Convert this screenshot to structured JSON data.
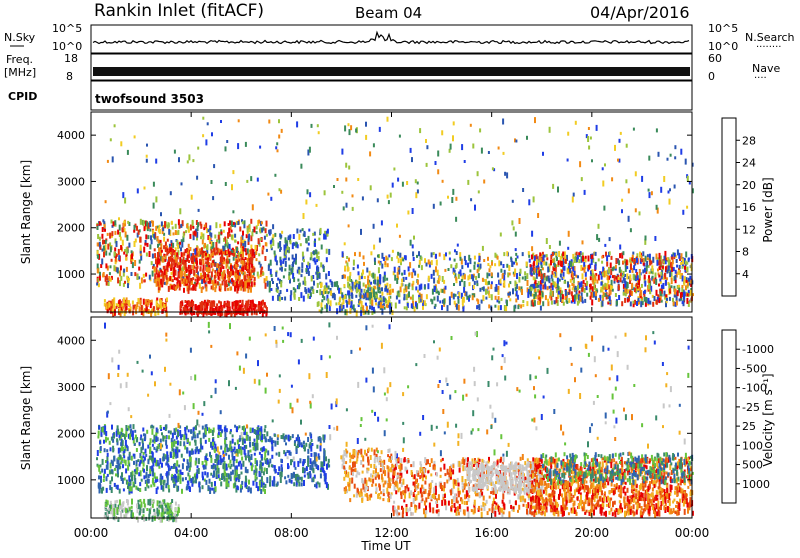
{
  "header": {
    "station": "Rankin Inlet (fitACF)",
    "beam": "Beam 04",
    "date": "04/Apr/2016"
  },
  "strip_panels": {
    "noise": {
      "left_label": "N.Sky",
      "right_label": "N.Search",
      "left_ticks": [
        "10^5",
        "10^0"
      ],
      "right_ticks": [
        "10^5",
        "10^0"
      ]
    },
    "freq": {
      "left_label_line1": "Freq.",
      "left_label_line2": "[MHz]",
      "right_label": "Nave",
      "left_ticks": [
        "18",
        "8"
      ],
      "right_ticks": [
        "60",
        "0"
      ]
    },
    "cpid": {
      "label": "CPID",
      "value": "twofsound 3503"
    }
  },
  "chart_data": [
    {
      "type": "heatmap",
      "name": "power-panel",
      "ylabel": "Slant Range [km]",
      "ylim": [
        180,
        4500
      ],
      "yticks": [
        1000,
        2000,
        3000,
        4000
      ],
      "xlim": [
        0,
        24
      ],
      "colorbar": {
        "label": "Power [dB]",
        "ticks": [
          "4",
          "8",
          "12",
          "16",
          "20",
          "24",
          "28"
        ],
        "colors": [
          "#1f3de6",
          "#2a55b0",
          "#3a8a5a",
          "#9cc43c",
          "#f2cc22",
          "#f28a14",
          "#e03010",
          "#e80000"
        ]
      }
    },
    {
      "type": "heatmap",
      "name": "velocity-panel",
      "ylabel": "Slant Range [km]",
      "ylim": [
        180,
        4500
      ],
      "yticks": [
        1000,
        2000,
        3000,
        4000
      ],
      "xlim": [
        0,
        24
      ],
      "xticks": [
        "00:00",
        "04:00",
        "08:00",
        "12:00",
        "16:00",
        "20:00",
        "00:00"
      ],
      "xlabel": "Time UT",
      "colorbar": {
        "label": "Velocity [m s⁻¹]",
        "ticks": [
          "1000",
          "500",
          "100",
          "25",
          "-25",
          "-100",
          "-500",
          "-1000"
        ],
        "colors": [
          "#1f3de6",
          "#2f64b0",
          "#3a8a6a",
          "#66c43c",
          "#c8c8c8",
          "#f2b222",
          "#f28414",
          "#e84e10",
          "#e80000"
        ]
      }
    }
  ]
}
